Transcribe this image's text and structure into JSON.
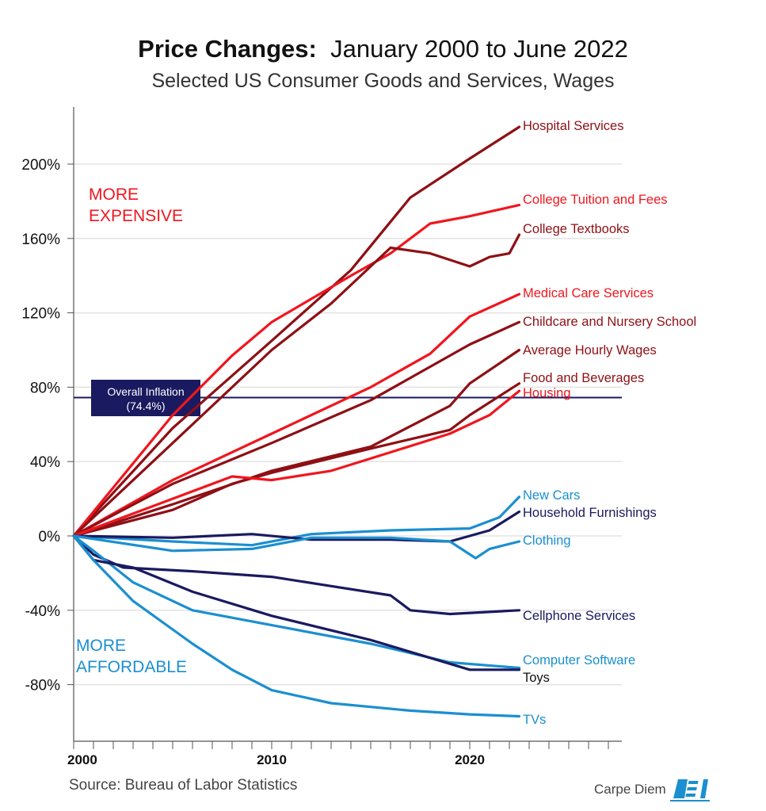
{
  "title_bold": "Price Changes:",
  "title_rest": "January 2000 to June 2022",
  "subtitle": "Selected US Consumer Goods and Services, Wages",
  "source": "Source: Bureau of Labor Statistics",
  "brand": "Carpe Diem",
  "logo_text": "AEI",
  "annotations": {
    "more_expensive": [
      "MORE",
      "EXPENSIVE"
    ],
    "more_affordable": [
      "MORE",
      "AFFORDABLE"
    ],
    "inflation": [
      "Overall Inflation",
      "(74.4%)"
    ]
  },
  "colors": {
    "dark_red": "#8e1015",
    "red": "#f0161e",
    "blue": "#1b8fd0",
    "navy": "#1a1a60"
  },
  "chart_data": {
    "type": "line",
    "title": "Price Changes: January 2000 to June 2022",
    "xlabel": "",
    "ylabel": "",
    "xlim": [
      2000,
      2027.7
    ],
    "ylim": [
      -110,
      230
    ],
    "x_ticks": [
      2000,
      2010,
      2020
    ],
    "y_ticks": [
      -80,
      -40,
      0,
      40,
      80,
      120,
      160,
      200
    ],
    "y_tick_labels": [
      "-80%",
      "-40%",
      "0%",
      "40%",
      "80%",
      "120%",
      "160%",
      "200%"
    ],
    "grid": true,
    "reference_line": {
      "label": "Overall Inflation (74.4%)",
      "value": 74.4
    },
    "series": [
      {
        "name": "Hospital Services",
        "color": "dark_red",
        "x": [
          2000,
          2005,
          2010,
          2014,
          2017,
          2020,
          2022.5
        ],
        "y": [
          0,
          58,
          105,
          143,
          182,
          203,
          220
        ]
      },
      {
        "name": "College Tuition and Fees",
        "color": "red",
        "x": [
          2000,
          2005,
          2008,
          2010,
          2014,
          2016,
          2018,
          2020,
          2022.5
        ],
        "y": [
          0,
          65,
          97,
          115,
          140,
          152,
          168,
          172,
          178
        ]
      },
      {
        "name": "College Textbooks",
        "color": "dark_red",
        "x": [
          2000,
          2005,
          2010,
          2013,
          2016,
          2018,
          2020,
          2021,
          2022,
          2022.5
        ],
        "y": [
          0,
          50,
          100,
          125,
          155,
          152,
          145,
          150,
          152,
          162
        ]
      },
      {
        "name": "Medical Care Services",
        "color": "red",
        "x": [
          2000,
          2005,
          2010,
          2015,
          2018,
          2020,
          2022.5
        ],
        "y": [
          0,
          30,
          55,
          80,
          98,
          118,
          130
        ]
      },
      {
        "name": "Childcare and Nursery School",
        "color": "dark_red",
        "x": [
          2000,
          2005,
          2010,
          2015,
          2020,
          2022.5
        ],
        "y": [
          0,
          28,
          50,
          73,
          103,
          115
        ]
      },
      {
        "name": "Average Hourly Wages",
        "color": "dark_red",
        "x": [
          2000,
          2005,
          2010,
          2015,
          2019,
          2020,
          2022.5
        ],
        "y": [
          0,
          17,
          35,
          48,
          70,
          82,
          100
        ]
      },
      {
        "name": "Food and Beverages",
        "color": "dark_red",
        "x": [
          2000,
          2005,
          2008,
          2010,
          2015,
          2019,
          2020,
          2022.5
        ],
        "y": [
          0,
          14,
          28,
          34,
          47,
          57,
          65,
          82
        ]
      },
      {
        "name": "Housing",
        "color": "red",
        "x": [
          2000,
          2005,
          2008,
          2010,
          2013,
          2016,
          2019,
          2021,
          2022.5
        ],
        "y": [
          0,
          20,
          32,
          30,
          35,
          45,
          55,
          65,
          78
        ]
      },
      {
        "name": "New Cars",
        "color": "blue",
        "x": [
          2000,
          2005,
          2009,
          2012,
          2016,
          2020,
          2021.5,
          2022.5
        ],
        "y": [
          0,
          -3,
          -5,
          1,
          3,
          4,
          10,
          21
        ]
      },
      {
        "name": "Household Furnishings",
        "color": "navy",
        "x": [
          2000,
          2005,
          2009,
          2012,
          2016,
          2019,
          2021,
          2022.5
        ],
        "y": [
          0,
          -1,
          1,
          -2,
          -2,
          -3,
          3,
          13
        ]
      },
      {
        "name": "Clothing",
        "color": "blue",
        "x": [
          2000,
          2005,
          2009,
          2012,
          2016,
          2019,
          2020.3,
          2021,
          2022.5
        ],
        "y": [
          0,
          -8,
          -7,
          -1,
          -1,
          -3,
          -12,
          -7,
          -3
        ]
      },
      {
        "name": "Cellphone Services",
        "color": "navy",
        "x": [
          2000,
          2001,
          2002.5,
          2006,
          2010,
          2013,
          2016,
          2017,
          2019,
          2022.5
        ],
        "y": [
          0,
          -10,
          -17,
          -19,
          -22,
          -27,
          -32,
          -40,
          -42,
          -40
        ]
      },
      {
        "name": "Computer Software",
        "color": "blue",
        "x": [
          2000,
          2001,
          2003,
          2006,
          2010,
          2015,
          2019,
          2022.5
        ],
        "y": [
          0,
          -8,
          -25,
          -40,
          -48,
          -58,
          -68,
          -71
        ]
      },
      {
        "name": "Toys",
        "color": "navy",
        "x": [
          2000,
          2001,
          2003,
          2006,
          2010,
          2015,
          2020,
          2022.5
        ],
        "y": [
          0,
          -13,
          -17,
          -30,
          -43,
          -56,
          -72,
          -72
        ]
      },
      {
        "name": "TVs",
        "color": "blue",
        "x": [
          2000,
          2001,
          2003,
          2006,
          2008,
          2010,
          2013,
          2017,
          2020,
          2022.5
        ],
        "y": [
          0,
          -13,
          -35,
          -58,
          -72,
          -83,
          -90,
          -94,
          -96,
          -97
        ]
      }
    ]
  }
}
